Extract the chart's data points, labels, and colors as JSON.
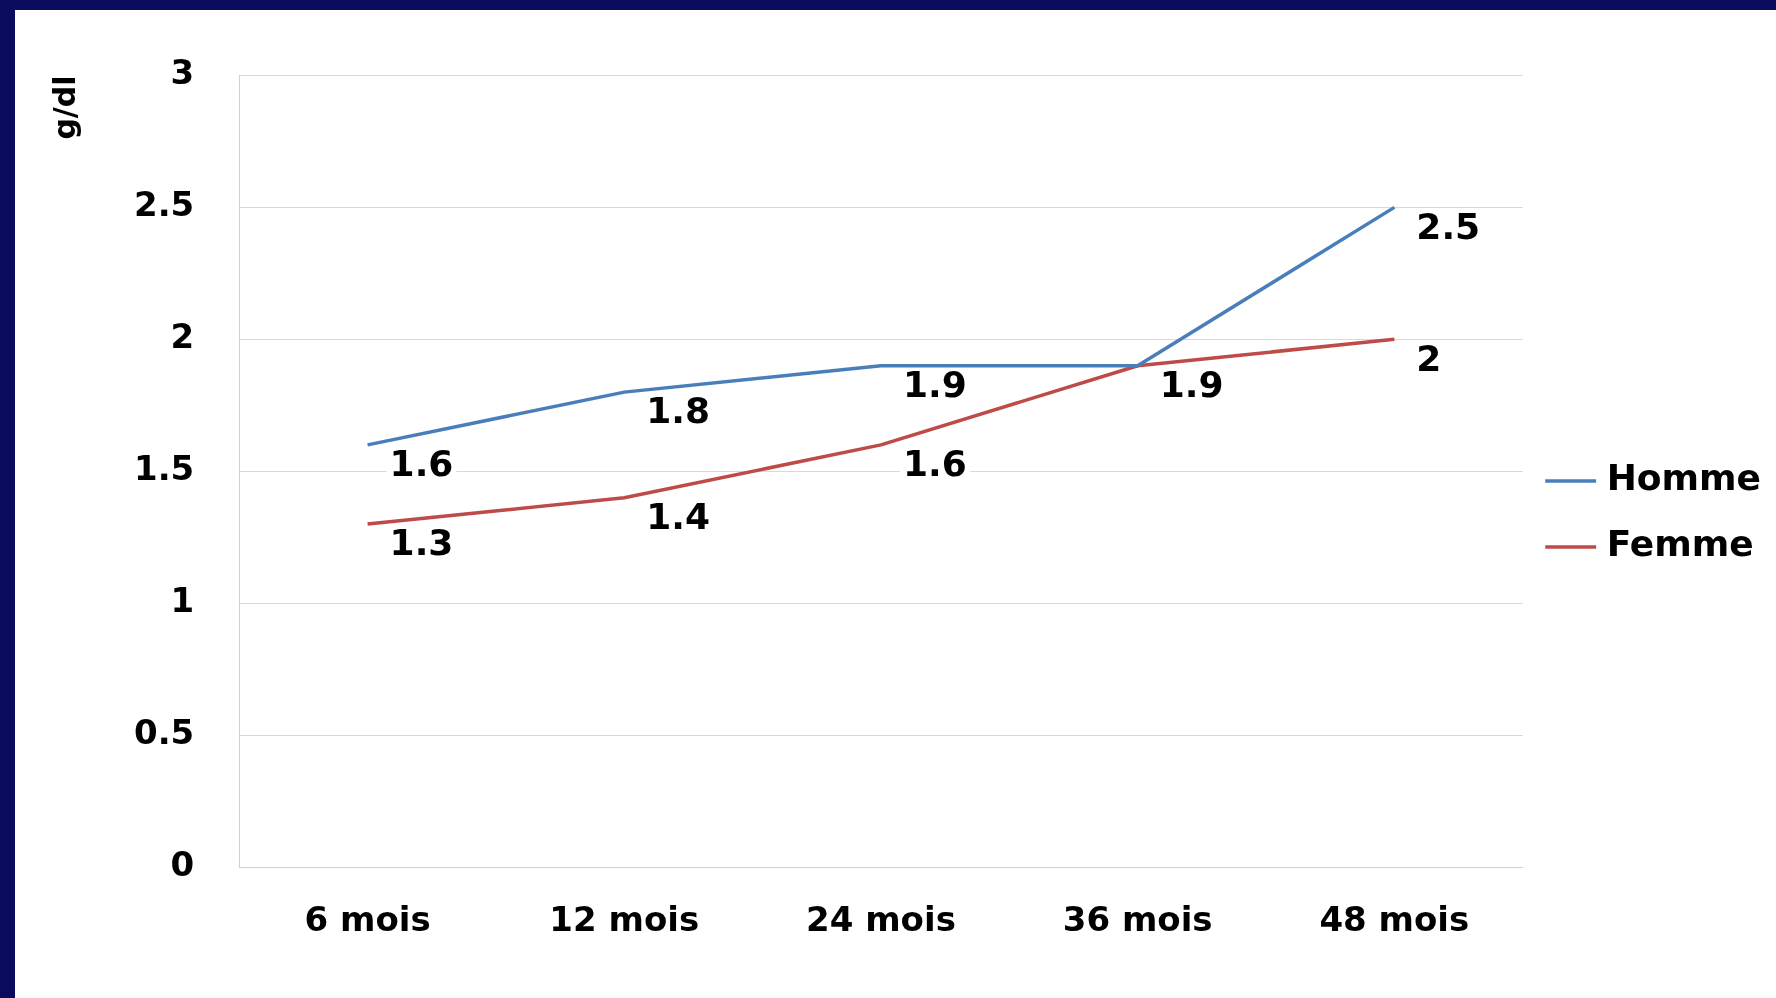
{
  "chart_data": {
    "type": "line",
    "ylabel": "g/dl",
    "categories": [
      "6 mois",
      "12 mois",
      "24 mois",
      "36 mois",
      "48 mois"
    ],
    "series": [
      {
        "name": "Homme",
        "color": "#4a7ebb",
        "values": [
          1.6,
          1.8,
          1.9,
          1.9,
          2.5
        ],
        "value_labels": [
          "1.6",
          "1.8",
          "1.9",
          null,
          "2.5"
        ]
      },
      {
        "name": "Femme",
        "color": "#be4b48",
        "values": [
          1.3,
          1.4,
          1.6,
          1.9,
          2
        ],
        "value_labels": [
          "1.3",
          "1.4",
          "1.6",
          "1.9",
          "2"
        ]
      }
    ],
    "ylim": [
      0,
      3
    ],
    "yticks": [
      0,
      0.5,
      1,
      1.5,
      2,
      2.5,
      3
    ],
    "grid": "y",
    "legend": "right",
    "marker": "none",
    "line_style": "solid"
  }
}
